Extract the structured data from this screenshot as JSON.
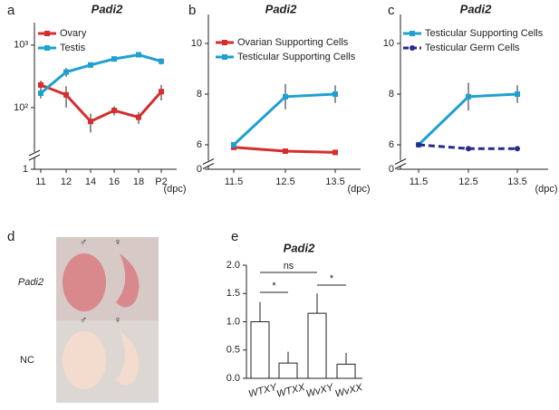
{
  "chart_data": [
    {
      "type": "line",
      "label": "a",
      "title": "Padi2",
      "log": true,
      "xlabel": "(dpc)",
      "categories": [
        "11",
        "12",
        "14",
        "16",
        "18",
        "P2"
      ],
      "ylim": [
        1,
        2000
      ],
      "ybreak": [
        1,
        30
      ],
      "yticks": [
        1,
        {
          "value": 100,
          "label": "10²"
        },
        {
          "value": 1000,
          "label": "10³"
        }
      ],
      "series": [
        {
          "name": "Ovary",
          "color": "#d62d2d",
          "marker": "square",
          "values": [
            230,
            160,
            60,
            90,
            70,
            180
          ],
          "errors": [
            40,
            60,
            20,
            15,
            15,
            50
          ]
        },
        {
          "name": "Testis",
          "color": "#1fa0d0",
          "marker": "square",
          "values": [
            170,
            370,
            480,
            600,
            700,
            550
          ],
          "errors": [
            30,
            60,
            50,
            50,
            50,
            60
          ]
        }
      ]
    },
    {
      "type": "line",
      "label": "b",
      "title": "Padi2",
      "xlabel": "(dpc)",
      "categories": [
        "11.5",
        "12.5",
        "13.5"
      ],
      "ylim": [
        0,
        11
      ],
      "ybreak": [
        0,
        5.5
      ],
      "yticks": [
        0,
        6,
        8,
        10
      ],
      "series": [
        {
          "name": "Ovarian Supporting Cells",
          "color": "#d62d2d",
          "marker": "square",
          "values": [
            5.9,
            5.75,
            5.7
          ],
          "errors": [
            0.05,
            0.05,
            0.05
          ]
        },
        {
          "name": "Testicular Supporting Cells",
          "color": "#1fa0d0",
          "marker": "square",
          "values": [
            6.0,
            7.9,
            8.0
          ],
          "errors": [
            0.05,
            0.5,
            0.35
          ]
        }
      ]
    },
    {
      "type": "line",
      "label": "c",
      "title": "Padi2",
      "xlabel": "(dpc)",
      "categories": [
        "11.5",
        "12.5",
        "13.5"
      ],
      "ylim": [
        0,
        11
      ],
      "ybreak": [
        0,
        5.5
      ],
      "yticks": [
        0,
        6,
        8,
        10
      ],
      "series": [
        {
          "name": "Testicular Supporting Cells",
          "color": "#1fa0d0",
          "marker": "square",
          "values": [
            6.0,
            7.9,
            8.0
          ],
          "errors": [
            0.05,
            0.55,
            0.35
          ]
        },
        {
          "name": "Testicular Germ Cells",
          "color": "#2a2a8a",
          "marker": "circle",
          "dashed": true,
          "values": [
            6.0,
            5.85,
            5.85
          ],
          "errors": [
            0.05,
            0.05,
            0.05
          ]
        }
      ]
    },
    {
      "type": "image",
      "label": "d",
      "rows": [
        "Padi2",
        "NC"
      ],
      "columns": [
        "♂",
        "♀"
      ]
    },
    {
      "type": "bar",
      "label": "e",
      "title": "Padi2",
      "categories": [
        "WTXY",
        "WTXX",
        "WvXY",
        "WvXX"
      ],
      "values": [
        1.0,
        0.27,
        1.15,
        0.25
      ],
      "errors": [
        0.35,
        0.2,
        0.35,
        0.2
      ],
      "ylim": [
        0,
        2
      ],
      "yticks": [
        {
          "value": 0,
          "label": "0.0"
        },
        0.5,
        {
          "value": 1,
          "label": "1.0"
        },
        1.5,
        {
          "value": 2,
          "label": "2.0"
        }
      ],
      "comparisons": [
        {
          "label": "ns",
          "between": [
            0,
            2
          ]
        },
        {
          "label": "*",
          "between": [
            0,
            1
          ]
        },
        {
          "label": "*",
          "between": [
            2,
            3
          ]
        }
      ]
    }
  ]
}
